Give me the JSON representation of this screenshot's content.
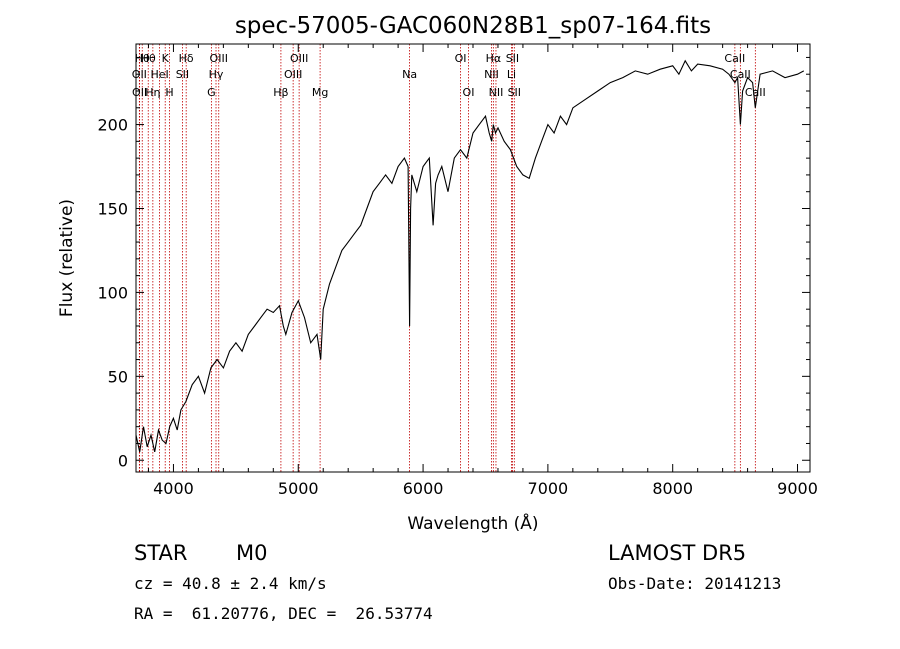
{
  "chart_data": {
    "type": "line",
    "title": "spec-57005-GAC060N28B1_sp07-164.fits",
    "xlabel": "Wavelength (Å)",
    "ylabel": "Flux (relative)",
    "xlim": [
      3700,
      9100
    ],
    "ylim": [
      -7,
      248
    ],
    "x_ticks": [
      4000,
      5000,
      6000,
      7000,
      8000,
      9000
    ],
    "y_ticks": [
      0,
      50,
      100,
      150,
      200
    ],
    "grid": false,
    "series": [
      {
        "x": [
          3700,
          3730,
          3760,
          3790,
          3820,
          3850,
          3880,
          3910,
          3940,
          3970,
          4000,
          4030,
          4060,
          4100,
          4150,
          4200,
          4250,
          4300,
          4350,
          4400,
          4450,
          4500,
          4550,
          4600,
          4650,
          4700,
          4750,
          4800,
          4850,
          4880,
          4900,
          4950,
          5000,
          5050,
          5100,
          5150,
          5180,
          5200,
          5250,
          5300,
          5350,
          5400,
          5450,
          5500,
          5550,
          5600,
          5650,
          5700,
          5750,
          5800,
          5850,
          5880,
          5892,
          5900,
          5910,
          5950,
          6000,
          6050,
          6080,
          6100,
          6120,
          6150,
          6200,
          6250,
          6300,
          6350,
          6400,
          6450,
          6500,
          6530,
          6550,
          6563,
          6580,
          6600,
          6650,
          6700,
          6750,
          6800,
          6850,
          6900,
          6950,
          7000,
          7050,
          7100,
          7150,
          7200,
          7300,
          7400,
          7500,
          7600,
          7700,
          7800,
          7900,
          8000,
          8050,
          8100,
          8150,
          8200,
          8300,
          8400,
          8450,
          8498,
          8520,
          8542,
          8560,
          8600,
          8640,
          8662,
          8700,
          8800,
          8900,
          9000,
          9050
        ],
        "y": [
          15,
          5,
          20,
          8,
          15,
          5,
          18,
          12,
          10,
          20,
          25,
          18,
          30,
          35,
          45,
          50,
          40,
          55,
          60,
          55,
          65,
          70,
          65,
          75,
          80,
          85,
          90,
          88,
          92,
          80,
          75,
          88,
          95,
          85,
          70,
          75,
          60,
          90,
          105,
          115,
          125,
          130,
          135,
          140,
          150,
          160,
          165,
          170,
          165,
          175,
          180,
          175,
          80,
          150,
          170,
          160,
          175,
          180,
          140,
          165,
          170,
          175,
          160,
          180,
          185,
          180,
          195,
          200,
          205,
          195,
          190,
          200,
          195,
          198,
          190,
          185,
          175,
          170,
          168,
          180,
          190,
          200,
          195,
          205,
          200,
          210,
          215,
          220,
          225,
          228,
          232,
          230,
          233,
          235,
          230,
          238,
          232,
          236,
          235,
          233,
          230,
          225,
          228,
          200,
          220,
          228,
          225,
          210,
          230,
          232,
          228,
          230,
          232
        ]
      }
    ],
    "lines": [
      {
        "x": 3750,
        "label": "Hθ",
        "row": 0
      },
      {
        "x": 3727,
        "label": "OII",
        "row": 1
      },
      {
        "x": 3729,
        "label": "OII",
        "row": 2
      },
      {
        "x": 3798,
        "label": "Hθ",
        "row": 0
      },
      {
        "x": 3835,
        "label": "Hη",
        "row": 2
      },
      {
        "x": 3889,
        "label": "HeI",
        "row": 1
      },
      {
        "x": 3934,
        "label": "K",
        "row": 0
      },
      {
        "x": 3969,
        "label": "H",
        "row": 2
      },
      {
        "x": 4072,
        "label": "SII",
        "row": 1
      },
      {
        "x": 4102,
        "label": "Hδ",
        "row": 0
      },
      {
        "x": 4304,
        "label": "G",
        "row": 2
      },
      {
        "x": 4341,
        "label": "Hγ",
        "row": 1
      },
      {
        "x": 4363,
        "label": "OIII",
        "row": 0
      },
      {
        "x": 4861,
        "label": "Hβ",
        "row": 2
      },
      {
        "x": 4959,
        "label": "OIII",
        "row": 1
      },
      {
        "x": 5007,
        "label": "OIII",
        "row": 0
      },
      {
        "x": 5175,
        "label": "Mg",
        "row": 2
      },
      {
        "x": 5892,
        "label": "Na",
        "row": 1
      },
      {
        "x": 6300,
        "label": "OI",
        "row": 0
      },
      {
        "x": 6364,
        "label": "OI",
        "row": 2
      },
      {
        "x": 6548,
        "label": "NII",
        "row": 1
      },
      {
        "x": 6563,
        "label": "Hα",
        "row": 0
      },
      {
        "x": 6584,
        "label": "NII",
        "row": 2
      },
      {
        "x": 6708,
        "label": "Li",
        "row": 1
      },
      {
        "x": 6716,
        "label": "SII",
        "row": 0
      },
      {
        "x": 6731,
        "label": "SII",
        "row": 2
      },
      {
        "x": 8498,
        "label": "CaII",
        "row": 0
      },
      {
        "x": 8542,
        "label": "CaII",
        "row": 1
      },
      {
        "x": 8662,
        "label": "CaII",
        "row": 2
      }
    ]
  },
  "info": {
    "object_class": "STAR",
    "subclass": "M0",
    "survey": "LAMOST DR5",
    "cz": "cz = 40.8 ± 2.4 km/s",
    "obs_date": "Obs-Date: 20141213",
    "coords": "RA =  61.20776, DEC =  26.53774"
  }
}
